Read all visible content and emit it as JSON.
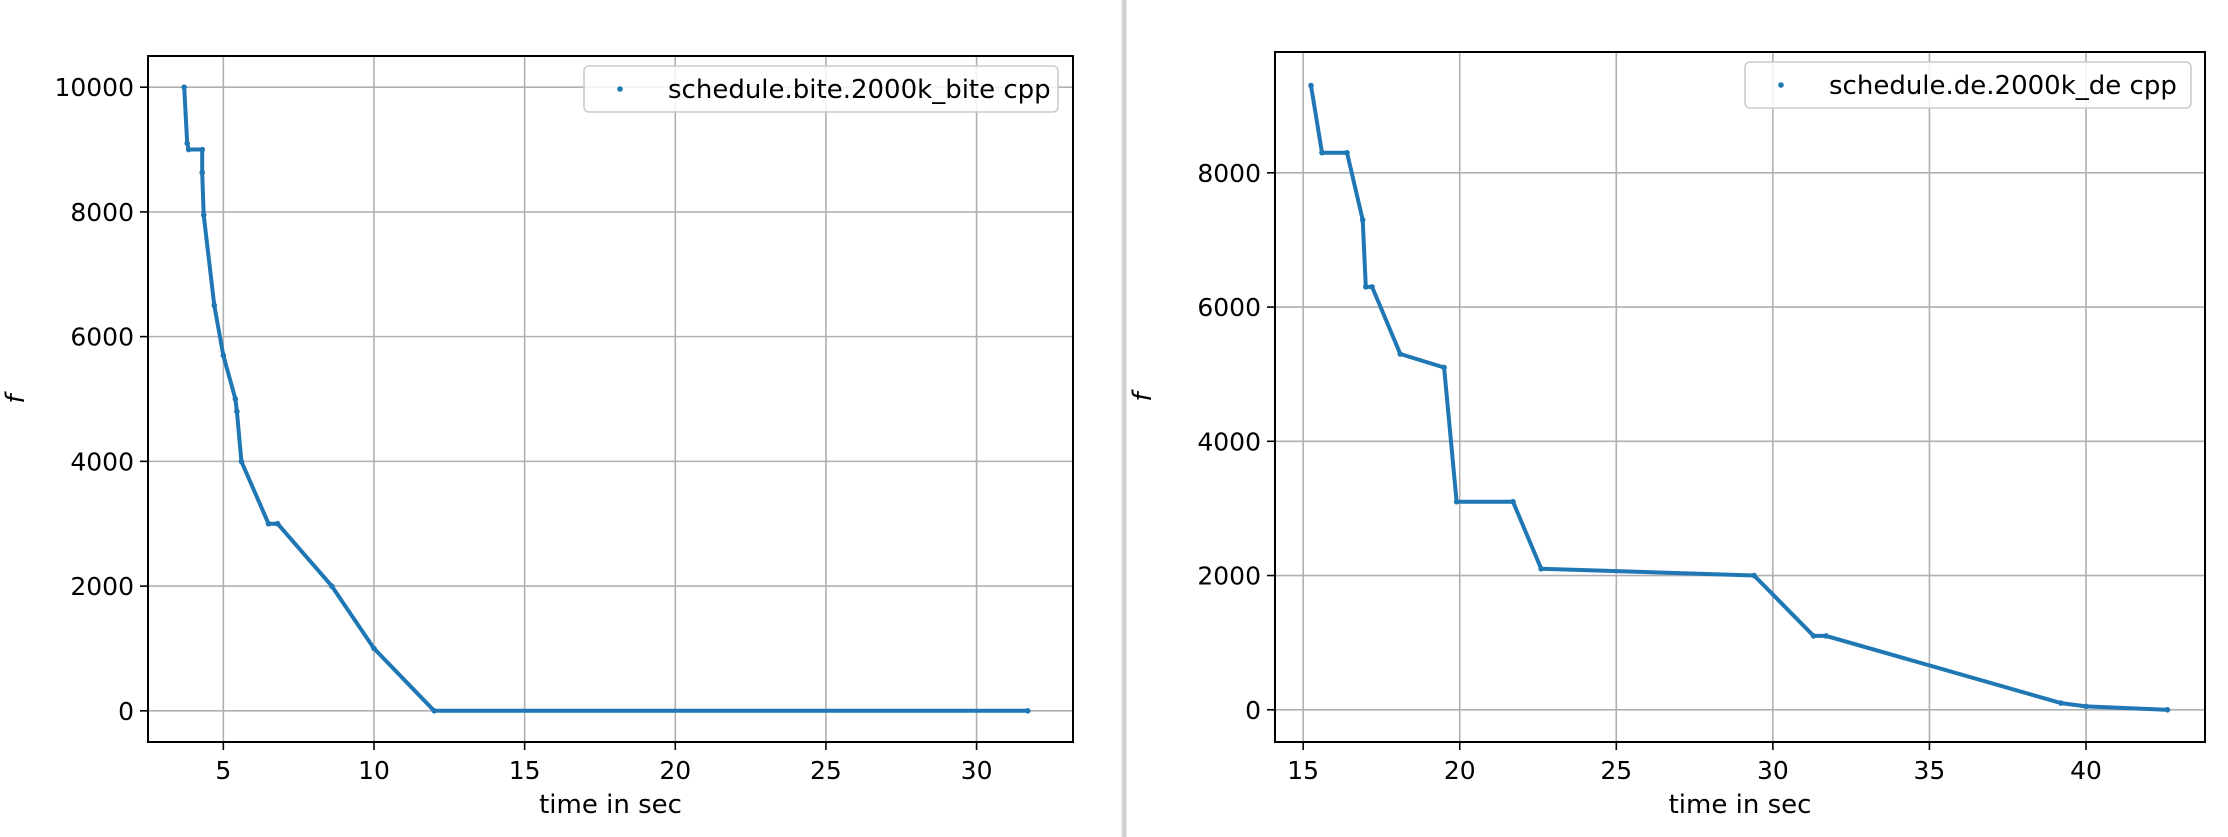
{
  "colors": {
    "series": "#1f77b4",
    "grid": "#b0b0b0",
    "axes": "#000000"
  },
  "chart_data": [
    {
      "type": "scatter",
      "title": "",
      "xlabel": "time in sec",
      "ylabel": "f",
      "xlim": [
        2.5,
        33.2
      ],
      "ylim": [
        -500,
        10500
      ],
      "xticks": [
        5,
        10,
        15,
        20,
        25,
        30
      ],
      "yticks": [
        0,
        2000,
        4000,
        6000,
        8000,
        10000
      ],
      "grid": true,
      "legend_position": "top-right",
      "series": [
        {
          "name": "schedule.bite.2000k_bite cpp",
          "points": [
            [
              3.7,
              10000
            ],
            [
              3.8,
              9100
            ],
            [
              3.85,
              9000
            ],
            [
              4.3,
              9000
            ],
            [
              4.3,
              8630
            ],
            [
              4.35,
              7950
            ],
            [
              4.7,
              6500
            ],
            [
              5.0,
              5700
            ],
            [
              5.4,
              5000
            ],
            [
              5.45,
              4800
            ],
            [
              5.6,
              4000
            ],
            [
              6.5,
              3000
            ],
            [
              6.8,
              3000
            ],
            [
              8.6,
              2000
            ],
            [
              10.0,
              1000
            ],
            [
              12.0,
              0
            ],
            [
              31.7,
              0
            ]
          ]
        }
      ]
    },
    {
      "type": "scatter",
      "title": "",
      "xlabel": "time in sec",
      "ylabel": "f",
      "xlim": [
        14.1,
        43.8
      ],
      "ylim": [
        -480,
        9800
      ],
      "xticks": [
        15,
        20,
        25,
        30,
        35,
        40
      ],
      "yticks": [
        0,
        2000,
        4000,
        6000,
        8000
      ],
      "grid": true,
      "legend_position": "top-right",
      "series": [
        {
          "name": "schedule.de.2000k_de cpp",
          "points": [
            [
              15.25,
              9300
            ],
            [
              15.6,
              8300
            ],
            [
              16.4,
              8300
            ],
            [
              16.9,
              7300
            ],
            [
              17.0,
              6300
            ],
            [
              17.2,
              6300
            ],
            [
              18.1,
              5300
            ],
            [
              19.5,
              5100
            ],
            [
              19.9,
              3100
            ],
            [
              21.7,
              3100
            ],
            [
              22.6,
              2100
            ],
            [
              29.4,
              2000
            ],
            [
              31.3,
              1100
            ],
            [
              31.7,
              1100
            ],
            [
              39.2,
              100
            ],
            [
              40.0,
              50
            ],
            [
              42.6,
              0
            ]
          ]
        }
      ]
    }
  ]
}
